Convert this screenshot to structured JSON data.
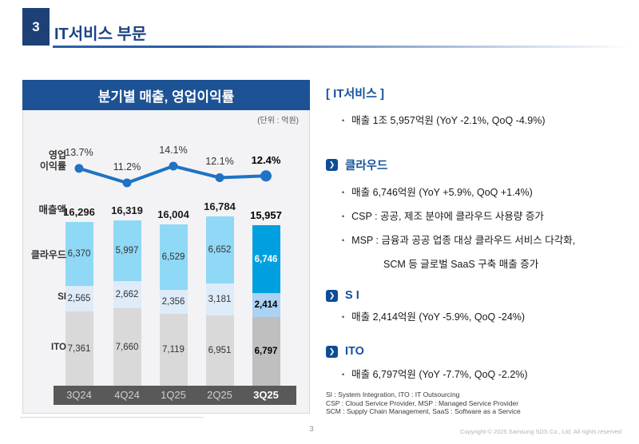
{
  "page": {
    "slide_number": "3",
    "title": "IT서비스 부문",
    "page_number": "3",
    "copyright": "Copyright © 2025 Samsung SDS Co., Ltd. All rights reserved"
  },
  "chart_panel": {
    "title": "분기별 매출, 영업이익률",
    "unit_label": "(단위 : 억원)",
    "row_labels": {
      "margin_line1": "영업",
      "margin_line2": "이익률",
      "revenue": "매출액",
      "cloud": "클라우드",
      "si": "SI",
      "ito": "ITO"
    }
  },
  "chart_data": {
    "type": "bar",
    "subtype": "stacked-bar-with-line",
    "title": "분기별 매출, 영업이익률",
    "unit": "억원",
    "categories": [
      "3Q24",
      "4Q24",
      "1Q25",
      "2Q25",
      "3Q25"
    ],
    "line_series": {
      "name": "영업이익률",
      "unit": "%",
      "values": [
        13.7,
        11.2,
        14.1,
        12.1,
        12.4
      ]
    },
    "series": [
      {
        "name": "클라우드",
        "values": [
          6370,
          5997,
          6529,
          6652,
          6746
        ]
      },
      {
        "name": "SI",
        "values": [
          2565,
          2662,
          2356,
          3181,
          2414
        ]
      },
      {
        "name": "ITO",
        "values": [
          7361,
          7660,
          7119,
          6951,
          6797
        ]
      }
    ],
    "totals": {
      "name": "매출액",
      "values": [
        16296,
        16319,
        16004,
        16784,
        15957
      ]
    },
    "highlight_index": 4,
    "legend_position": "left-row-labels",
    "grid": false
  },
  "details": {
    "it_service": {
      "heading": "[ IT서비스 ]",
      "bullets": [
        "매출 1조 5,957억원 (YoY -2.1%, QoQ -4.9%)"
      ]
    },
    "sections": [
      {
        "heading": "클라우드",
        "bullets": [
          "매출 6,746억원 (YoY +5.9%, QoQ +1.4%)",
          "CSP : 공공, 제조 분야에 클라우드 사용량 증가",
          "MSP : 금융과 공공 업종 대상 클라우드 서비스 다각화,"
        ],
        "continuation": "SCM 등 글로벌 SaaS 구축 매출 증가"
      },
      {
        "heading": "S I",
        "bullets": [
          "매출 2,414억원 (YoY -5.9%, QoQ -24%)"
        ]
      },
      {
        "heading": "ITO",
        "bullets": [
          "매출 6,797억원 (YoY -7.7%, QoQ -2.2%)"
        ]
      }
    ],
    "footnotes": [
      "SI : System Integration, ITO : IT Outsourcing",
      "CSP : Cloud Service Provider, MSP : Managed Service Provider",
      "SCM : Supply Chain Management, SaaS : Software as a Service"
    ]
  },
  "colors": {
    "accent_navy": "#1d4077",
    "title_text": "#1c4384",
    "panel_header": "#1d5295",
    "line": "#1e73c4",
    "cloud_bar": "#8fd8f6",
    "cloud_bar_highlight": "#00a0e0",
    "si_bar": "#deebf8",
    "si_bar_highlight": "#a9d2f3",
    "ito_bar": "#d9d9d9",
    "ito_bar_highlight": "#bfbfbf",
    "axis_band": "#595959",
    "heading_blue": "#15519b"
  }
}
